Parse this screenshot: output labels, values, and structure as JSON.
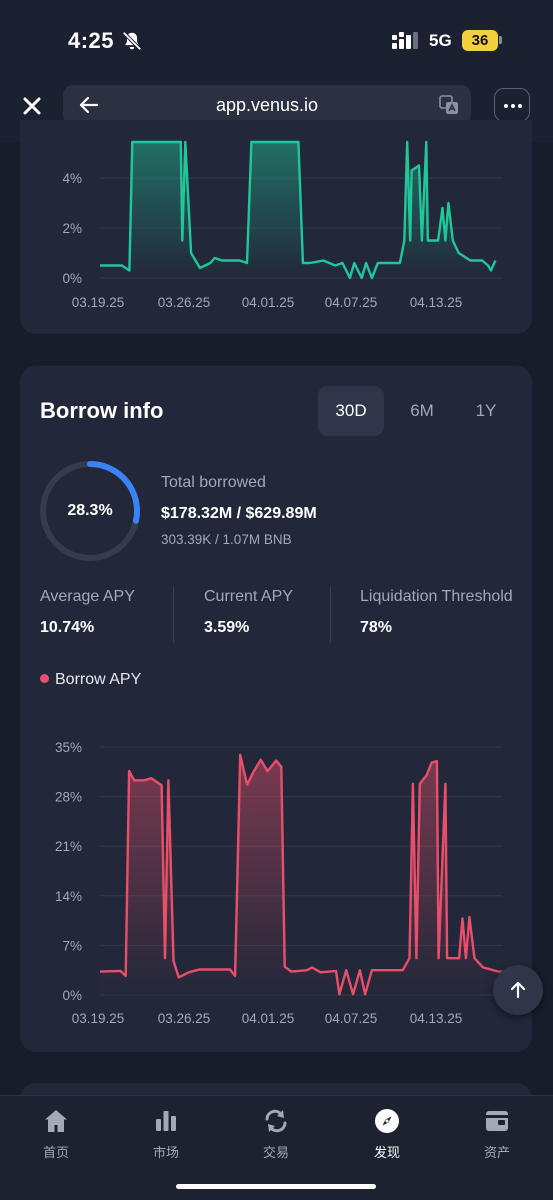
{
  "status_bar": {
    "time": "4:25",
    "network": "5G",
    "battery": "36"
  },
  "browser": {
    "url": "app.venus.io"
  },
  "supply_chart": {
    "y_ticks": [
      "4%",
      "2%",
      "0%"
    ],
    "x_ticks": [
      "03.19.25",
      "03.26.25",
      "04.01.25",
      "04.07.25",
      "04.13.25"
    ],
    "color": "#1fc79b"
  },
  "borrow_info": {
    "title": "Borrow info",
    "periods": [
      "30D",
      "6M",
      "1Y"
    ],
    "active_period": "30D",
    "utilization": "28.3%",
    "utilization_fraction": 0.283,
    "total_borrowed_label": "Total borrowed",
    "total_borrowed_value": "$178.32M / $629.89M",
    "total_borrowed_sub": "303.39K / 1.07M BNB",
    "stats": [
      {
        "label": "Average APY",
        "value": "10.74%"
      },
      {
        "label": "Current APY",
        "value": "3.59%"
      },
      {
        "label": "Liquidation Threshold",
        "value": "78%"
      }
    ],
    "legend": "Borrow APY",
    "accent_color": "#e94f6b",
    "donut_color": "#3b82f6"
  },
  "chart_data": [
    {
      "type": "area",
      "y_tick_labels": [
        "0%",
        "2%",
        "4%"
      ],
      "x_tick_labels": [
        "03.19.25",
        "03.26.25",
        "04.01.25",
        "04.07.25",
        "04.13.25"
      ],
      "series": [
        {
          "color": "#1fc79b",
          "points": [
            [
              0,
              0.5
            ],
            [
              1.5,
              0.5
            ],
            [
              2,
              0.3
            ],
            [
              2.2,
              6.2
            ],
            [
              5.5,
              6.2
            ],
            [
              5.6,
              1.5
            ],
            [
              5.8,
              6.2
            ],
            [
              6.2,
              1.0
            ],
            [
              6.8,
              0.4
            ],
            [
              7.5,
              0.6
            ],
            [
              7.8,
              0.8
            ],
            [
              8.3,
              0.7
            ],
            [
              9.5,
              0.7
            ],
            [
              10,
              0.6
            ],
            [
              10.3,
              6.2
            ],
            [
              13.5,
              6.2
            ],
            [
              13.8,
              0.6
            ],
            [
              14.3,
              0.6
            ],
            [
              15.2,
              0.7
            ],
            [
              16,
              0.5
            ],
            [
              16.5,
              0.6
            ],
            [
              17,
              0
            ],
            [
              17.3,
              0.6
            ],
            [
              17.8,
              0
            ],
            [
              18.1,
              0.6
            ],
            [
              18.5,
              0
            ],
            [
              18.9,
              0.6
            ],
            [
              20.4,
              0.6
            ],
            [
              20.7,
              1.5
            ],
            [
              20.9,
              6.2
            ],
            [
              21.1,
              1.5
            ],
            [
              21.2,
              4.3
            ],
            [
              21.7,
              4.5
            ],
            [
              21.9,
              1.5
            ],
            [
              22.2,
              6.2
            ],
            [
              22.3,
              1.5
            ],
            [
              23,
              1.5
            ],
            [
              23.3,
              2.8
            ],
            [
              23.5,
              1.5
            ],
            [
              23.7,
              3.0
            ],
            [
              24,
              1.5
            ],
            [
              24.4,
              1.0
            ],
            [
              25.2,
              0.7
            ],
            [
              26,
              0.7
            ],
            [
              26.4,
              0.5
            ],
            [
              26.6,
              0.3
            ],
            [
              26.9,
              0.7
            ]
          ]
        }
      ]
    },
    {
      "type": "area",
      "y_tick_labels": [
        "0%",
        "7%",
        "14%",
        "21%",
        "28%",
        "35%"
      ],
      "x_tick_labels": [
        "03.19.25",
        "03.26.25",
        "04.01.25",
        "04.07.25",
        "04.13.25"
      ],
      "ylim": [
        0,
        35
      ],
      "series": [
        {
          "name": "Borrow APY",
          "color": "#e94f6b",
          "points": [
            [
              0,
              3.3
            ],
            [
              1.2,
              3.4
            ],
            [
              1.5,
              2.7
            ],
            [
              1.7,
              31.6
            ],
            [
              2.0,
              30.3
            ],
            [
              2.6,
              30.3
            ],
            [
              3.0,
              30.6
            ],
            [
              3.6,
              29.6
            ],
            [
              3.8,
              5.2
            ],
            [
              4.0,
              30.3
            ],
            [
              4.3,
              4.8
            ],
            [
              4.6,
              2.5
            ],
            [
              5.2,
              3.2
            ],
            [
              5.8,
              3.6
            ],
            [
              7.6,
              3.6
            ],
            [
              7.9,
              2.7
            ],
            [
              8.2,
              33.9
            ],
            [
              8.6,
              29.7
            ],
            [
              9.0,
              31.6
            ],
            [
              9.4,
              33.2
            ],
            [
              9.8,
              31.6
            ],
            [
              10.3,
              33.1
            ],
            [
              10.6,
              32.2
            ],
            [
              10.8,
              4.0
            ],
            [
              11.2,
              3.3
            ],
            [
              12.1,
              3.5
            ],
            [
              12.4,
              3.9
            ],
            [
              12.9,
              3.2
            ],
            [
              13.8,
              3.4
            ],
            [
              14.0,
              0.1
            ],
            [
              14.4,
              3.5
            ],
            [
              14.8,
              0.1
            ],
            [
              15.2,
              3.5
            ],
            [
              15.5,
              0.1
            ],
            [
              15.9,
              3.5
            ],
            [
              17.7,
              3.5
            ],
            [
              18.1,
              5.2
            ],
            [
              18.3,
              29.8
            ],
            [
              18.5,
              5.2
            ],
            [
              18.7,
              29.8
            ],
            [
              19.1,
              31.0
            ],
            [
              19.4,
              32.8
            ],
            [
              19.7,
              33.0
            ],
            [
              19.8,
              5.2
            ],
            [
              20.2,
              29.8
            ],
            [
              20.3,
              5.2
            ],
            [
              21.0,
              5.2
            ],
            [
              21.2,
              10.8
            ],
            [
              21.4,
              5.2
            ],
            [
              21.6,
              11.0
            ],
            [
              21.9,
              5.2
            ],
            [
              22.4,
              3.9
            ],
            [
              23.3,
              3.3
            ],
            [
              24.0,
              3.3
            ],
            [
              24.4,
              2.6
            ],
            [
              24.7,
              3.2
            ]
          ]
        }
      ]
    }
  ],
  "nav": {
    "items": [
      {
        "label": "首页",
        "icon": "home-icon"
      },
      {
        "label": "市场",
        "icon": "market-icon"
      },
      {
        "label": "交易",
        "icon": "trade-icon"
      },
      {
        "label": "发现",
        "icon": "compass-icon"
      },
      {
        "label": "资产",
        "icon": "wallet-icon"
      }
    ],
    "active": "发现"
  }
}
